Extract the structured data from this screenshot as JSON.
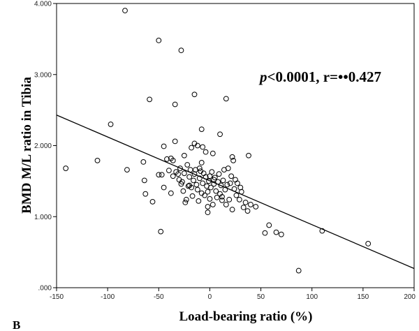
{
  "chart_data": {
    "type": "scatter",
    "xlabel": "Load-bearing ratio (%)",
    "ylabel": "BMD M/L ratio in Tibia",
    "xlim": [
      -150,
      200
    ],
    "ylim": [
      0,
      4.0
    ],
    "x_ticks": [
      -150,
      -100,
      -50,
      0,
      50,
      100,
      150,
      200
    ],
    "x_tick_labels": [
      "-150",
      "-100",
      "-50",
      "0",
      "50",
      "100",
      "150",
      "200"
    ],
    "y_ticks": [
      0,
      1.0,
      2.0,
      3.0,
      4.0
    ],
    "y_tick_labels": [
      ".000",
      "1.000",
      "2.000",
      "3.000",
      "4.000"
    ],
    "annotation": {
      "p_symbol": "p",
      "rest": "<0.0001, r=••0.427"
    },
    "panel_label": "B",
    "fit_line": {
      "x1": -150,
      "y1": 2.43,
      "x2": 200,
      "y2": 0.27
    },
    "points": [
      [
        -83,
        3.9
      ],
      [
        -50,
        3.48
      ],
      [
        -28,
        3.34
      ],
      [
        -15,
        2.72
      ],
      [
        16,
        2.66
      ],
      [
        -59,
        2.65
      ],
      [
        -34,
        2.58
      ],
      [
        -97,
        2.3
      ],
      [
        -8,
        2.23
      ],
      [
        10,
        2.16
      ],
      [
        -141,
        1.68
      ],
      [
        -110,
        1.79
      ],
      [
        -81,
        1.66
      ],
      [
        -65,
        1.77
      ],
      [
        -34,
        2.06
      ],
      [
        -15,
        2.03
      ],
      [
        -12,
        2.0
      ],
      [
        -18,
        1.97
      ],
      [
        -7,
        1.98
      ],
      [
        -45,
        1.99
      ],
      [
        -4,
        1.91
      ],
      [
        3,
        1.89
      ],
      [
        -25,
        1.86
      ],
      [
        38,
        1.86
      ],
      [
        22,
        1.84
      ],
      [
        -42,
        1.81
      ],
      [
        -36,
        1.79
      ],
      [
        23,
        1.79
      ],
      [
        -8,
        1.76
      ],
      [
        -22,
        1.73
      ],
      [
        -50,
        1.59
      ],
      [
        -64,
        1.51
      ],
      [
        -63,
        1.32
      ],
      [
        -56,
        1.21
      ],
      [
        -47,
        1.59
      ],
      [
        -45,
        1.41
      ],
      [
        -40,
        1.65
      ],
      [
        -38,
        1.33
      ],
      [
        -36,
        1.57
      ],
      [
        -33,
        1.63
      ],
      [
        -31,
        1.6
      ],
      [
        -30,
        1.52
      ],
      [
        -29,
        1.68
      ],
      [
        -28,
        1.46
      ],
      [
        -27,
        1.49
      ],
      [
        -26,
        1.36
      ],
      [
        -25,
        1.61
      ],
      [
        -24,
        1.2
      ],
      [
        -23,
        1.24
      ],
      [
        -21,
        1.43
      ],
      [
        -20,
        1.56
      ],
      [
        -19,
        1.66
      ],
      [
        -18,
        1.41
      ],
      [
        -17,
        1.29
      ],
      [
        -16,
        1.51
      ],
      [
        -15,
        1.6
      ],
      [
        -14,
        1.66
      ],
      [
        -13,
        1.45
      ],
      [
        -12,
        1.38
      ],
      [
        -11,
        1.22
      ],
      [
        -10,
        1.54
      ],
      [
        -9,
        1.64
      ],
      [
        -8,
        1.33
      ],
      [
        -7,
        1.47
      ],
      [
        -6,
        1.61
      ],
      [
        -5,
        1.3
      ],
      [
        -4,
        1.56
      ],
      [
        -3,
        1.43
      ],
      [
        -2,
        1.35
      ],
      [
        -1,
        1.5
      ],
      [
        0,
        1.25
      ],
      [
        1,
        1.41
      ],
      [
        2,
        1.63
      ],
      [
        3,
        1.17
      ],
      [
        4,
        1.46
      ],
      [
        5,
        1.55
      ],
      [
        6,
        1.36
      ],
      [
        7,
        1.27
      ],
      [
        8,
        1.49
      ],
      [
        9,
        1.6
      ],
      [
        10,
        1.32
      ],
      [
        11,
        1.44
      ],
      [
        12,
        1.28
      ],
      [
        13,
        1.51
      ],
      [
        14,
        1.66
      ],
      [
        15,
        1.38
      ],
      [
        17,
        1.45
      ],
      [
        18,
        1.68
      ],
      [
        19,
        1.24
      ],
      [
        20,
        1.47
      ],
      [
        21,
        1.57
      ],
      [
        22,
        1.1
      ],
      [
        24,
        1.39
      ],
      [
        25,
        1.52
      ],
      [
        27,
        1.47
      ],
      [
        29,
        1.24
      ],
      [
        31,
        1.35
      ],
      [
        33,
        1.13
      ],
      [
        35,
        1.2
      ],
      [
        37,
        1.08
      ],
      [
        40,
        1.17
      ],
      [
        45,
        1.14
      ],
      [
        -2,
        1.06
      ],
      [
        -48,
        0.79
      ],
      [
        54,
        0.77
      ],
      [
        58,
        0.88
      ],
      [
        65,
        0.78
      ],
      [
        70,
        0.75
      ],
      [
        87,
        0.24
      ],
      [
        110,
        0.8
      ],
      [
        155,
        0.62
      ],
      [
        -38,
        1.82
      ],
      [
        -20,
        1.44
      ],
      [
        -10,
        1.68
      ],
      [
        4,
        1.52
      ],
      [
        12,
        1.23
      ],
      [
        30,
        1.41
      ],
      [
        16,
        1.17
      ],
      [
        -2,
        1.14
      ],
      [
        0,
        1.57
      ],
      [
        26,
        1.3
      ]
    ]
  }
}
